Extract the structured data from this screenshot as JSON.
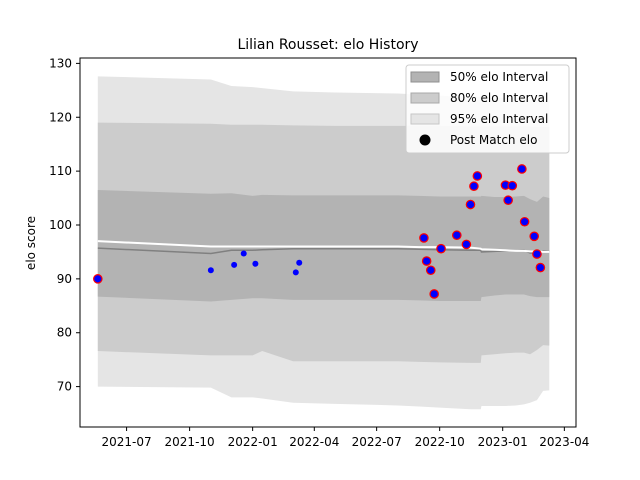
{
  "chart_data": {
    "type": "scatter",
    "title": "Lilian Rousset: elo History",
    "xlabel": "",
    "ylabel": "elo score",
    "xlim": [
      "2021-04-24",
      "2023-04-18"
    ],
    "ylim": [
      62.5,
      131
    ],
    "x_ticks": [
      "2021-07",
      "2021-10",
      "2022-01",
      "2022-04",
      "2022-07",
      "2022-10",
      "2023-01",
      "2023-04"
    ],
    "y_ticks": [
      70,
      80,
      90,
      100,
      110,
      120,
      130
    ],
    "grid": false,
    "legend": {
      "placement": "top-right",
      "entries": [
        "50% elo Interval",
        "80% elo Interval",
        "95% elo Interval",
        "Post Match elo"
      ]
    },
    "colors": {
      "band_50": "#b3b3b3",
      "band_80": "#cccccc",
      "band_95": "#e5e5e5",
      "mean_line": "#808080",
      "trend_line": "#ffffff",
      "point_fill": "#0000ff",
      "match_edge": "#ff0000"
    },
    "bands": {
      "x": [
        "2021-05-20",
        "2021-11-01",
        "2021-12-01",
        "2022-01-01",
        "2022-01-15",
        "2022-03-01",
        "2022-05-01",
        "2022-08-01",
        "2022-09-01",
        "2022-10-01",
        "2022-11-15",
        "2022-11-30",
        "2022-12-01",
        "2022-12-20",
        "2023-01-05",
        "2023-01-20",
        "2023-02-01",
        "2023-02-10",
        "2023-02-20",
        "2023-03-01",
        "2023-03-10"
      ],
      "p95_low": [
        70,
        69.8,
        68,
        68,
        67.8,
        67,
        66.8,
        66.5,
        66.3,
        66.1,
        65.8,
        65.8,
        66.4,
        66.4,
        66.4,
        66.5,
        66.7,
        67,
        67.5,
        69.2,
        69.3
      ],
      "p95_high": [
        127.6,
        127,
        125.8,
        125.6,
        125.4,
        124.8,
        124.6,
        124.4,
        124.2,
        124,
        123.8,
        123.8,
        123.7,
        123.6,
        123.6,
        123.5,
        123.4,
        123.2,
        123,
        123,
        123
      ],
      "p80_low": [
        76.6,
        75.8,
        75.8,
        75.8,
        76.6,
        74.7,
        74.7,
        74.7,
        74.6,
        74.5,
        74.4,
        74.4,
        75.8,
        76,
        76.2,
        76.3,
        76.3,
        76,
        76.8,
        77.7,
        77.6
      ],
      "p80_high": [
        119,
        118.8,
        118.6,
        118.6,
        118.6,
        118.5,
        118.4,
        118.4,
        118.4,
        118.4,
        118.3,
        118.3,
        118.3,
        118.3,
        118.3,
        118.3,
        118.3,
        118.3,
        118.2,
        118.2,
        118.2
      ],
      "p50_low": [
        86.7,
        85.8,
        86.1,
        86.4,
        86.4,
        86.1,
        86.1,
        86.1,
        86,
        85.9,
        85.9,
        85.9,
        86.6,
        86.9,
        87.1,
        87.1,
        87.1,
        86.8,
        86.6,
        86.6,
        86.6
      ],
      "p50_high": [
        106.5,
        105.8,
        105.9,
        105.4,
        105.6,
        105.5,
        105.5,
        105.5,
        105.4,
        105.3,
        105.3,
        105.3,
        105.4,
        105.2,
        105.2,
        105.3,
        105.4,
        104.8,
        104.3,
        105.3,
        105
      ],
      "mean": [
        95.7,
        94.7,
        95.3,
        95.3,
        95.4,
        95.6,
        95.6,
        95.6,
        95.5,
        95.4,
        95.3,
        95.3,
        95,
        95.1,
        95.2,
        95.2,
        95.3,
        94.8,
        94.7,
        95.2,
        95.1
      ],
      "trend": [
        97,
        96,
        96,
        96,
        96,
        96,
        96,
        96,
        95.9,
        95.9,
        95.8,
        95.6,
        95.5,
        95.4,
        95.3,
        95.2,
        95.2,
        95.1,
        95.1,
        95,
        95
      ]
    },
    "series": [
      {
        "name": "Post Match elo",
        "x": [
          "2021-05-20",
          "2022-09-08",
          "2022-09-12",
          "2022-09-18",
          "2022-09-23",
          "2022-10-03",
          "2022-10-26",
          "2022-11-09",
          "2022-11-15",
          "2022-11-20",
          "2022-11-25",
          "2023-01-05",
          "2023-01-09",
          "2023-01-15",
          "2023-01-29",
          "2023-02-02",
          "2023-02-16",
          "2023-02-20",
          "2023-02-25"
        ],
        "y": [
          90,
          97.6,
          93.3,
          91.6,
          87.2,
          95.6,
          98.1,
          96.4,
          103.8,
          107.2,
          109.1,
          107.4,
          104.6,
          107.3,
          110.4,
          100.6,
          97.9,
          94.6,
          92.1
        ],
        "edge": "match"
      },
      {
        "name": "",
        "x": [
          "2021-11-01",
          "2021-12-05",
          "2021-12-19",
          "2022-01-05",
          "2022-03-05",
          "2022-03-10"
        ],
        "y": [
          91.6,
          92.6,
          94.7,
          92.8,
          91.2,
          93.0
        ],
        "edge": "none"
      }
    ]
  }
}
